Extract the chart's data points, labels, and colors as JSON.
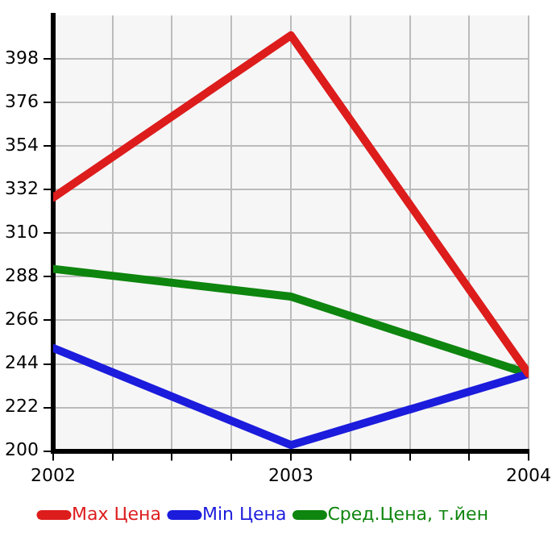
{
  "chart_data": {
    "type": "line",
    "x": [
      2002,
      2003,
      2004
    ],
    "series": [
      {
        "name": "Max Цена",
        "color": "#dd1c1c",
        "values": [
          328,
          410,
          239
        ]
      },
      {
        "name": "Min Цена",
        "color": "#1c1cdd",
        "values": [
          252,
          203,
          239
        ]
      },
      {
        "name": "Сред.Цена, т.йен",
        "color": "#0e850e",
        "values": [
          292,
          278,
          239
        ]
      }
    ],
    "xlim": [
      2002,
      2004
    ],
    "xticks": [
      2002,
      {
        "value": 2002.25,
        "label": null
      },
      {
        "value": 2002.5,
        "label": null
      },
      {
        "value": 2002.75,
        "label": null
      },
      2003,
      {
        "value": 2003.25,
        "label": null
      },
      {
        "value": 2003.5,
        "label": null
      },
      {
        "value": 2003.75,
        "label": null
      },
      2004
    ],
    "ylim": [
      200,
      420
    ],
    "yticks": [
      200,
      222,
      244,
      266,
      288,
      310,
      332,
      354,
      376,
      398
    ],
    "grid": true,
    "legend": "bottom",
    "marker": "none",
    "line_style": "solid"
  }
}
